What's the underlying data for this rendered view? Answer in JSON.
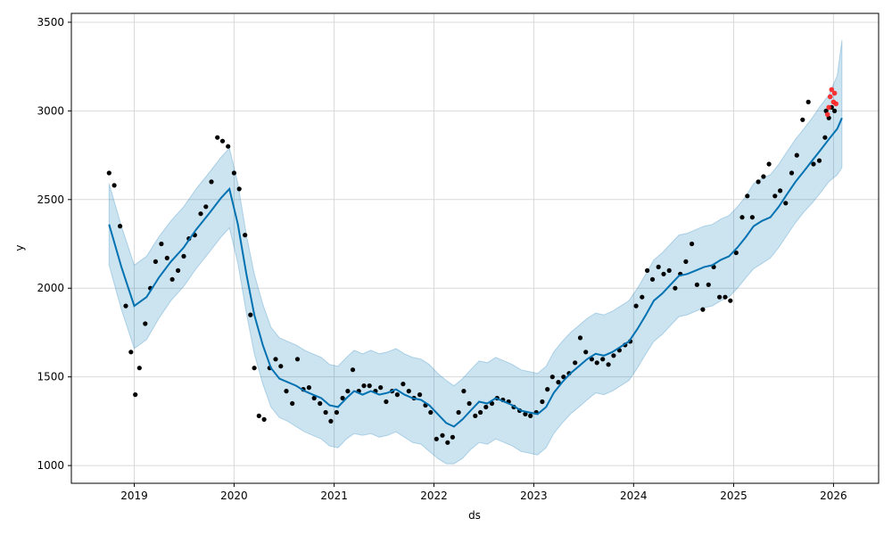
{
  "chart_data": {
    "type": "line",
    "title": "",
    "xlabel": "ds",
    "ylabel": "y",
    "xlim": [
      "2018-05-16",
      "2026-06-15"
    ],
    "ylim": [
      900,
      3550
    ],
    "grid": true,
    "x_ticks": [
      "2019",
      "2020",
      "2021",
      "2022",
      "2023",
      "2024",
      "2025",
      "2026"
    ],
    "y_ticks": [
      1000,
      1500,
      2000,
      2500,
      3000,
      3500
    ],
    "colors": {
      "forecast_line": "#0072B2",
      "uncertainty_band": "#0072B2",
      "observed_points": "#000000",
      "recent_points": "#ff2020",
      "grid": "#d9d9d9"
    },
    "forecast": {
      "x": [
        "2018-10-01",
        "2018-11-15",
        "2019-01-01",
        "2019-02-15",
        "2019-04-01",
        "2019-05-15",
        "2019-07-01",
        "2019-08-15",
        "2019-10-01",
        "2019-11-15",
        "2019-12-15",
        "2020-01-15",
        "2020-02-15",
        "2020-03-15",
        "2020-04-15",
        "2020-05-15",
        "2020-06-15",
        "2020-07-15",
        "2020-08-15",
        "2020-09-15",
        "2020-10-15",
        "2020-11-15",
        "2020-12-15",
        "2021-01-15",
        "2021-02-15",
        "2021-03-15",
        "2021-04-15",
        "2021-05-15",
        "2021-06-15",
        "2021-07-15",
        "2021-08-15",
        "2021-09-15",
        "2021-10-15",
        "2021-11-15",
        "2021-12-15",
        "2022-01-15",
        "2022-02-15",
        "2022-03-15",
        "2022-04-15",
        "2022-05-15",
        "2022-06-15",
        "2022-07-15",
        "2022-08-15",
        "2022-09-15",
        "2022-10-15",
        "2022-11-15",
        "2022-12-15",
        "2023-01-15",
        "2023-02-15",
        "2023-03-15",
        "2023-04-15",
        "2023-05-15",
        "2023-06-15",
        "2023-07-15",
        "2023-08-15",
        "2023-09-15",
        "2023-10-15",
        "2023-11-15",
        "2023-12-15",
        "2024-01-15",
        "2024-02-15",
        "2024-03-15",
        "2024-04-15",
        "2024-05-15",
        "2024-06-15",
        "2024-07-15",
        "2024-08-15",
        "2024-09-15",
        "2024-10-15",
        "2024-11-15",
        "2024-12-15",
        "2025-01-15",
        "2025-02-15",
        "2025-03-15",
        "2025-04-15",
        "2025-05-15",
        "2025-06-15",
        "2025-07-15",
        "2025-08-15",
        "2025-09-15",
        "2025-10-15",
        "2025-11-15",
        "2025-12-15",
        "2026-01-15",
        "2026-02-01"
      ],
      "yhat": [
        2360,
        2120,
        1900,
        1950,
        2060,
        2150,
        2230,
        2330,
        2420,
        2510,
        2560,
        2360,
        2080,
        1850,
        1680,
        1550,
        1490,
        1470,
        1450,
        1420,
        1400,
        1380,
        1340,
        1330,
        1380,
        1420,
        1400,
        1420,
        1400,
        1410,
        1430,
        1400,
        1380,
        1370,
        1340,
        1290,
        1240,
        1220,
        1260,
        1310,
        1360,
        1350,
        1380,
        1360,
        1340,
        1310,
        1300,
        1290,
        1330,
        1410,
        1470,
        1520,
        1560,
        1600,
        1630,
        1620,
        1640,
        1670,
        1700,
        1770,
        1850,
        1930,
        1970,
        2020,
        2070,
        2080,
        2100,
        2120,
        2130,
        2160,
        2180,
        2230,
        2290,
        2350,
        2380,
        2400,
        2460,
        2530,
        2600,
        2660,
        2720,
        2780,
        2840,
        2900,
        2960
      ],
      "lower": [
        2130,
        1880,
        1660,
        1710,
        1830,
        1930,
        2010,
        2110,
        2200,
        2290,
        2340,
        2140,
        1860,
        1630,
        1460,
        1330,
        1270,
        1250,
        1220,
        1190,
        1170,
        1150,
        1110,
        1100,
        1150,
        1180,
        1170,
        1180,
        1160,
        1170,
        1190,
        1160,
        1130,
        1120,
        1080,
        1040,
        1010,
        1010,
        1040,
        1090,
        1130,
        1120,
        1150,
        1130,
        1110,
        1080,
        1070,
        1060,
        1100,
        1180,
        1240,
        1290,
        1330,
        1370,
        1410,
        1400,
        1420,
        1450,
        1480,
        1550,
        1630,
        1700,
        1740,
        1790,
        1840,
        1850,
        1870,
        1890,
        1900,
        1930,
        1950,
        2000,
        2060,
        2110,
        2140,
        2170,
        2230,
        2300,
        2370,
        2430,
        2480,
        2540,
        2600,
        2640,
        2680
      ],
      "upper": [
        2590,
        2350,
        2130,
        2180,
        2290,
        2380,
        2460,
        2560,
        2650,
        2740,
        2790,
        2590,
        2300,
        2080,
        1910,
        1780,
        1720,
        1700,
        1680,
        1650,
        1630,
        1610,
        1570,
        1560,
        1610,
        1650,
        1630,
        1650,
        1630,
        1640,
        1660,
        1630,
        1610,
        1600,
        1570,
        1520,
        1480,
        1450,
        1490,
        1540,
        1590,
        1580,
        1610,
        1590,
        1570,
        1540,
        1530,
        1520,
        1560,
        1640,
        1700,
        1750,
        1790,
        1830,
        1860,
        1850,
        1870,
        1900,
        1930,
        2000,
        2080,
        2160,
        2200,
        2250,
        2300,
        2310,
        2330,
        2350,
        2360,
        2390,
        2410,
        2460,
        2520,
        2590,
        2620,
        2640,
        2700,
        2770,
        2840,
        2900,
        2960,
        3030,
        3090,
        3200,
        3400
      ]
    },
    "observed_segments": [
      {
        "x": [
          "2018-10-01",
          "2018-10-20",
          "2018-11-10",
          "2018-12-01",
          "2018-12-20",
          "2019-01-05",
          "2019-01-20",
          "2019-02-10",
          "2019-03-01",
          "2019-03-20",
          "2019-04-10",
          "2019-05-01",
          "2019-05-20",
          "2019-06-10",
          "2019-07-01",
          "2019-07-20",
          "2019-08-10",
          "2019-09-01",
          "2019-09-20",
          "2019-10-10",
          "2019-11-01",
          "2019-11-20",
          "2019-12-10",
          "2020-01-01",
          "2020-01-20",
          "2020-02-10",
          "2020-03-01",
          "2020-03-15",
          "2020-04-01",
          "2020-04-20",
          "2020-05-10",
          "2020-06-01",
          "2020-06-20",
          "2020-07-10",
          "2020-08-01",
          "2020-08-20",
          "2020-09-10",
          "2020-10-01",
          "2020-10-20",
          "2020-11-10",
          "2020-12-01",
          "2020-12-20",
          "2021-01-10",
          "2021-02-01",
          "2021-02-20",
          "2021-03-10",
          "2021-04-01",
          "2021-04-20",
          "2021-05-10",
          "2021-06-01",
          "2021-06-20",
          "2021-07-10",
          "2021-08-01",
          "2021-08-20",
          "2021-09-10",
          "2021-10-01",
          "2021-10-20",
          "2021-11-10",
          "2021-12-01",
          "2021-12-20",
          "2022-01-10",
          "2022-02-01",
          "2022-02-20",
          "2022-03-10",
          "2022-04-01",
          "2022-04-20",
          "2022-05-10",
          "2022-06-01",
          "2022-06-20",
          "2022-07-10",
          "2022-08-01",
          "2022-08-20",
          "2022-09-10",
          "2022-10-01",
          "2022-10-20",
          "2022-11-10",
          "2022-12-01",
          "2022-12-20",
          "2023-01-10",
          "2023-02-01",
          "2023-02-20",
          "2023-03-10",
          "2023-04-01",
          "2023-04-20",
          "2023-05-10",
          "2023-06-01",
          "2023-06-20",
          "2023-07-10",
          "2023-08-01",
          "2023-08-20",
          "2023-09-10",
          "2023-10-01",
          "2023-10-20",
          "2023-11-10",
          "2023-12-01",
          "2023-12-20",
          "2024-01-10",
          "2024-02-01",
          "2024-02-20",
          "2024-03-10",
          "2024-04-01",
          "2024-04-20",
          "2024-05-10",
          "2024-06-01",
          "2024-06-20",
          "2024-07-10",
          "2024-08-01",
          "2024-08-20",
          "2024-09-10",
          "2024-10-01",
          "2024-10-20",
          "2024-11-10",
          "2024-12-01",
          "2024-12-20",
          "2025-01-10",
          "2025-02-01",
          "2025-02-20",
          "2025-03-10",
          "2025-04-01",
          "2025-04-20",
          "2025-05-10",
          "2025-06-01",
          "2025-06-20",
          "2025-07-10",
          "2025-08-01",
          "2025-08-20",
          "2025-09-10",
          "2025-10-01",
          "2025-10-20",
          "2025-11-10",
          "2025-12-01"
        ],
        "y": [
          2650,
          2580,
          2350,
          1900,
          1640,
          1400,
          1550,
          1800,
          2000,
          2150,
          2250,
          2170,
          2050,
          2100,
          2180,
          2280,
          2300,
          2420,
          2460,
          2600,
          2850,
          2830,
          2800,
          2650,
          2560,
          2300,
          1850,
          1550,
          1280,
          1260,
          1550,
          1600,
          1560,
          1420,
          1350,
          1600,
          1430,
          1440,
          1380,
          1350,
          1300,
          1250,
          1300,
          1380,
          1420,
          1540,
          1420,
          1450,
          1450,
          1420,
          1440,
          1360,
          1420,
          1400,
          1460,
          1420,
          1380,
          1400,
          1340,
          1300,
          1150,
          1170,
          1130,
          1160,
          1300,
          1420,
          1350,
          1280,
          1300,
          1330,
          1350,
          1380,
          1370,
          1360,
          1330,
          1310,
          1290,
          1280,
          1300,
          1360,
          1430,
          1500,
          1470,
          1500,
          1520,
          1580,
          1720,
          1640,
          1600,
          1580,
          1600,
          1570,
          1620,
          1650,
          1680,
          1700,
          1900,
          1950,
          2100,
          2050,
          2120,
          2080,
          2100,
          2000,
          2080,
          2150,
          2250,
          2020,
          1880,
          2020,
          2120,
          1950,
          1950,
          1930,
          2200,
          2400,
          2520,
          2400,
          2600,
          2630,
          2700,
          2520,
          2550,
          2480,
          2650,
          2750,
          2950,
          3050,
          2700,
          2720,
          2850
        ]
      },
      {
        "x": [
          "2025-12-05",
          "2025-12-15",
          "2025-12-25",
          "2026-01-05"
        ],
        "y": [
          3000,
          2960,
          3020,
          3000
        ]
      }
    ],
    "recent_points": {
      "x": [
        "2025-12-10",
        "2025-12-15",
        "2025-12-20",
        "2025-12-25",
        "2026-01-01",
        "2026-01-05",
        "2026-01-10"
      ],
      "y": [
        2980,
        3020,
        3080,
        3120,
        3050,
        3100,
        3040
      ]
    }
  }
}
